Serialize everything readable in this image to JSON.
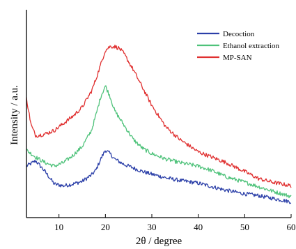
{
  "chart_data": {
    "type": "line",
    "xlabel": "2θ / degree",
    "ylabel": "Intensity / a.u.",
    "xlim": [
      3,
      60
    ],
    "ylim": [
      0,
      100
    ],
    "x_ticks": [
      10,
      20,
      30,
      40,
      50,
      60
    ],
    "y_ticks_labeled": false,
    "grid": false,
    "legend_position": "top-right",
    "series": [
      {
        "name": "Decoction",
        "color": "#2b3fa8",
        "x": [
          3,
          5,
          7,
          9,
          11,
          13,
          15,
          17,
          18,
          19,
          20,
          21,
          22,
          24,
          26,
          28,
          30,
          33,
          36,
          40,
          43,
          46,
          50,
          53,
          56,
          60
        ],
        "y": [
          21,
          24,
          18,
          11,
          10,
          11,
          12.5,
          16,
          19,
          25,
          30,
          28,
          25,
          22,
          20,
          18,
          16.5,
          14.5,
          13,
          11.5,
          9.5,
          7.5,
          5.5,
          4.5,
          3,
          1
        ]
      },
      {
        "name": "Ethanol extraction",
        "color": "#4ec27a",
        "x": [
          3,
          5,
          7,
          9,
          11,
          13,
          15,
          17,
          18,
          19,
          20,
          21,
          22,
          24,
          26,
          28,
          30,
          33,
          36,
          40,
          43,
          46,
          50,
          53,
          56,
          60
        ],
        "y": [
          30,
          26,
          23,
          21,
          23,
          27,
          32,
          41,
          50,
          60,
          66,
          60,
          52,
          44,
          36,
          31,
          28,
          25,
          23,
          21,
          18.5,
          15,
          12,
          9.5,
          7,
          4
        ]
      },
      {
        "name": "MP-SAN",
        "color": "#e03030",
        "x": [
          3,
          4,
          5,
          7,
          9,
          11,
          13,
          15,
          17,
          18,
          19,
          20,
          21,
          22,
          23,
          24,
          26,
          28,
          30,
          33,
          36,
          40,
          43,
          46,
          50,
          53,
          56,
          60
        ],
        "y": [
          59,
          44,
          38,
          39,
          41,
          45,
          49,
          54,
          63,
          70,
          78,
          86,
          88,
          88,
          87,
          84,
          75,
          65,
          55,
          43,
          36,
          29,
          26,
          23,
          18,
          14,
          12,
          10
        ]
      }
    ]
  }
}
